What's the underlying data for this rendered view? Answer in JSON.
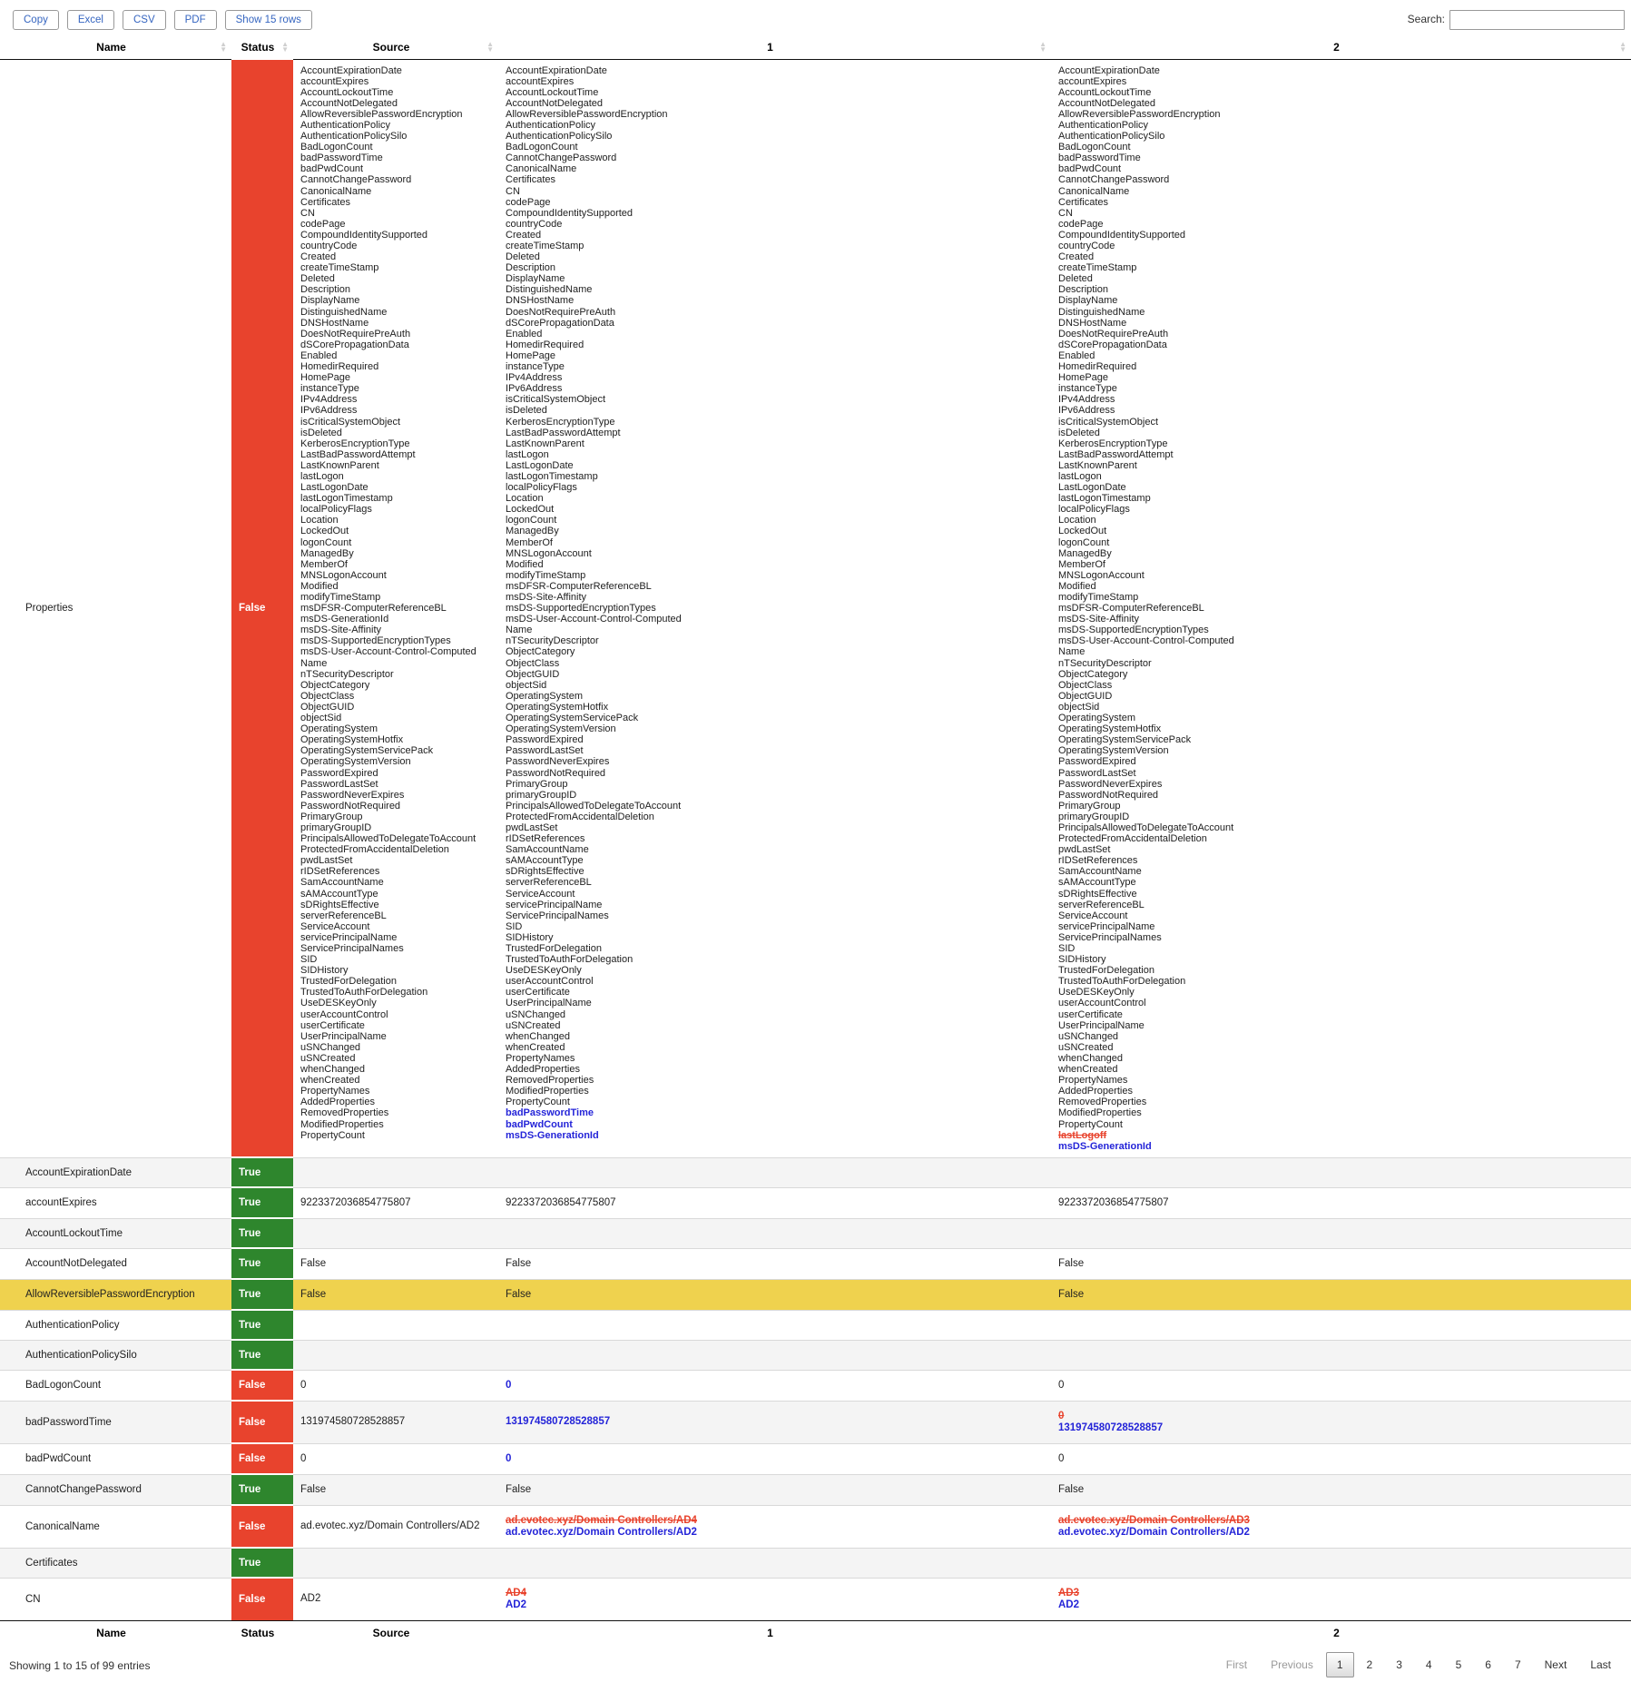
{
  "toolbar": {
    "buttons": [
      {
        "id": "copy",
        "label": "Copy"
      },
      {
        "id": "excel",
        "label": "Excel"
      },
      {
        "id": "csv",
        "label": "CSV"
      },
      {
        "id": "pdf",
        "label": "PDF"
      },
      {
        "id": "show-rows",
        "label": "Show 15 rows"
      }
    ]
  },
  "search": {
    "label": "Search:",
    "value": "",
    "placeholder": ""
  },
  "colors": {
    "status_true": "#2e862d",
    "status_false": "#e8432d",
    "highlight_row": "#efd24e",
    "added_text": "#2424d8",
    "removed_text": "#e8432d",
    "button_text": "#3565c0"
  },
  "table": {
    "columns": [
      "Name",
      "Status",
      "Source",
      "1",
      "2"
    ],
    "properties_row": {
      "name": "Properties",
      "status": "False",
      "source_items": [
        "AccountExpirationDate",
        "accountExpires",
        "AccountLockoutTime",
        "AccountNotDelegated",
        "AllowReversiblePasswordEncryption",
        "AuthenticationPolicy",
        "AuthenticationPolicySilo",
        "BadLogonCount",
        "badPasswordTime",
        "badPwdCount",
        "CannotChangePassword",
        "CanonicalName",
        "Certificates",
        "CN",
        "codePage",
        "CompoundIdentitySupported",
        "countryCode",
        "Created",
        "createTimeStamp",
        "Deleted",
        "Description",
        "DisplayName",
        "DistinguishedName",
        "DNSHostName",
        "DoesNotRequirePreAuth",
        "dSCorePropagationData",
        "Enabled",
        "HomedirRequired",
        "HomePage",
        "instanceType",
        "IPv4Address",
        "IPv6Address",
        "isCriticalSystemObject",
        "isDeleted",
        "KerberosEncryptionType",
        "LastBadPasswordAttempt",
        "LastKnownParent",
        "lastLogon",
        "LastLogonDate",
        "lastLogonTimestamp",
        "localPolicyFlags",
        "Location",
        "LockedOut",
        "logonCount",
        "ManagedBy",
        "MemberOf",
        "MNSLogonAccount",
        "Modified",
        "modifyTimeStamp",
        "msDFSR-ComputerReferenceBL",
        "msDS-GenerationId",
        "msDS-Site-Affinity",
        "msDS-SupportedEncryptionTypes",
        "msDS-User-Account-Control-Computed",
        "Name",
        "nTSecurityDescriptor",
        "ObjectCategory",
        "ObjectClass",
        "ObjectGUID",
        "objectSid",
        "OperatingSystem",
        "OperatingSystemHotfix",
        "OperatingSystemServicePack",
        "OperatingSystemVersion",
        "PasswordExpired",
        "PasswordLastSet",
        "PasswordNeverExpires",
        "PasswordNotRequired",
        "PrimaryGroup",
        "primaryGroupID",
        "PrincipalsAllowedToDelegateToAccount",
        "ProtectedFromAccidentalDeletion",
        "pwdLastSet",
        "rIDSetReferences",
        "SamAccountName",
        "sAMAccountType",
        "sDRightsEffective",
        "serverReferenceBL",
        "ServiceAccount",
        "servicePrincipalName",
        "ServicePrincipalNames",
        "SID",
        "SIDHistory",
        "TrustedForDelegation",
        "TrustedToAuthForDelegation",
        "UseDESKeyOnly",
        "userAccountControl",
        "userCertificate",
        "UserPrincipalName",
        "uSNChanged",
        "uSNCreated",
        "whenChanged",
        "whenCreated",
        "PropertyNames",
        "AddedProperties",
        "RemovedProperties",
        "ModifiedProperties",
        "PropertyCount"
      ],
      "col1_excluded": [
        "badPasswordTime",
        "badPwdCount",
        "msDS-GenerationId"
      ],
      "col1_removed": [],
      "col1_added": [
        "badPasswordTime",
        "badPwdCount",
        "msDS-GenerationId"
      ],
      "col2_excluded": [
        "msDS-GenerationId"
      ],
      "col2_removed": [
        "lastLogoff"
      ],
      "col2_added": [
        "msDS-GenerationId"
      ]
    },
    "rows": [
      {
        "name": "AccountExpirationDate",
        "status": "True",
        "highlight": false,
        "source": [],
        "c1": [],
        "c2": []
      },
      {
        "name": "accountExpires",
        "status": "True",
        "highlight": false,
        "source": [
          {
            "t": "9223372036854775807",
            "s": "n"
          }
        ],
        "c1": [
          {
            "t": "9223372036854775807",
            "s": "n"
          }
        ],
        "c2": [
          {
            "t": "9223372036854775807",
            "s": "n"
          }
        ]
      },
      {
        "name": "AccountLockoutTime",
        "status": "True",
        "highlight": false,
        "source": [],
        "c1": [],
        "c2": []
      },
      {
        "name": "AccountNotDelegated",
        "status": "True",
        "highlight": false,
        "source": [
          {
            "t": "False",
            "s": "n"
          }
        ],
        "c1": [
          {
            "t": "False",
            "s": "n"
          }
        ],
        "c2": [
          {
            "t": "False",
            "s": "n"
          }
        ]
      },
      {
        "name": "AllowReversiblePasswordEncryption",
        "status": "True",
        "highlight": true,
        "source": [
          {
            "t": "False",
            "s": "n"
          }
        ],
        "c1": [
          {
            "t": "False",
            "s": "n"
          }
        ],
        "c2": [
          {
            "t": "False",
            "s": "n"
          }
        ]
      },
      {
        "name": "AuthenticationPolicy",
        "status": "True",
        "highlight": false,
        "source": [],
        "c1": [],
        "c2": []
      },
      {
        "name": "AuthenticationPolicySilo",
        "status": "True",
        "highlight": false,
        "source": [],
        "c1": [],
        "c2": []
      },
      {
        "name": "BadLogonCount",
        "status": "False",
        "highlight": false,
        "source": [
          {
            "t": "0",
            "s": "n"
          }
        ],
        "c1": [
          {
            "t": "0",
            "s": "a"
          }
        ],
        "c2": [
          {
            "t": "0",
            "s": "n"
          }
        ]
      },
      {
        "name": "badPasswordTime",
        "status": "False",
        "highlight": false,
        "source": [
          {
            "t": "131974580728528857",
            "s": "n"
          }
        ],
        "c1": [
          {
            "t": "131974580728528857",
            "s": "a"
          }
        ],
        "c2": [
          {
            "t": "0",
            "s": "r"
          },
          {
            "t": "131974580728528857",
            "s": "a"
          }
        ]
      },
      {
        "name": "badPwdCount",
        "status": "False",
        "highlight": false,
        "source": [
          {
            "t": "0",
            "s": "n"
          }
        ],
        "c1": [
          {
            "t": "0",
            "s": "a"
          }
        ],
        "c2": [
          {
            "t": "0",
            "s": "n"
          }
        ]
      },
      {
        "name": "CannotChangePassword",
        "status": "True",
        "highlight": false,
        "source": [
          {
            "t": "False",
            "s": "n"
          }
        ],
        "c1": [
          {
            "t": "False",
            "s": "n"
          }
        ],
        "c2": [
          {
            "t": "False",
            "s": "n"
          }
        ]
      },
      {
        "name": "CanonicalName",
        "status": "False",
        "highlight": false,
        "source": [
          {
            "t": "ad.evotec.xyz/Domain Controllers/AD2",
            "s": "n"
          }
        ],
        "c1": [
          {
            "t": "ad.evotec.xyz/Domain Controllers/AD4",
            "s": "r"
          },
          {
            "t": "ad.evotec.xyz/Domain Controllers/AD2",
            "s": "a"
          }
        ],
        "c2": [
          {
            "t": "ad.evotec.xyz/Domain Controllers/AD3",
            "s": "r"
          },
          {
            "t": "ad.evotec.xyz/Domain Controllers/AD2",
            "s": "a"
          }
        ]
      },
      {
        "name": "Certificates",
        "status": "True",
        "highlight": false,
        "source": [],
        "c1": [],
        "c2": []
      },
      {
        "name": "CN",
        "status": "False",
        "highlight": false,
        "source": [
          {
            "t": "AD2",
            "s": "n"
          }
        ],
        "c1": [
          {
            "t": "AD4",
            "s": "r"
          },
          {
            "t": "AD2",
            "s": "a"
          }
        ],
        "c2": [
          {
            "t": "AD3",
            "s": "r"
          },
          {
            "t": "AD2",
            "s": "a"
          }
        ]
      }
    ]
  },
  "footer": {
    "info": "Showing 1 to 15 of 99 entries",
    "pagination": {
      "first": "First",
      "previous": "Previous",
      "pages": [
        "1",
        "2",
        "3",
        "4",
        "5",
        "6",
        "7"
      ],
      "current": "1",
      "next": "Next",
      "last": "Last"
    }
  }
}
